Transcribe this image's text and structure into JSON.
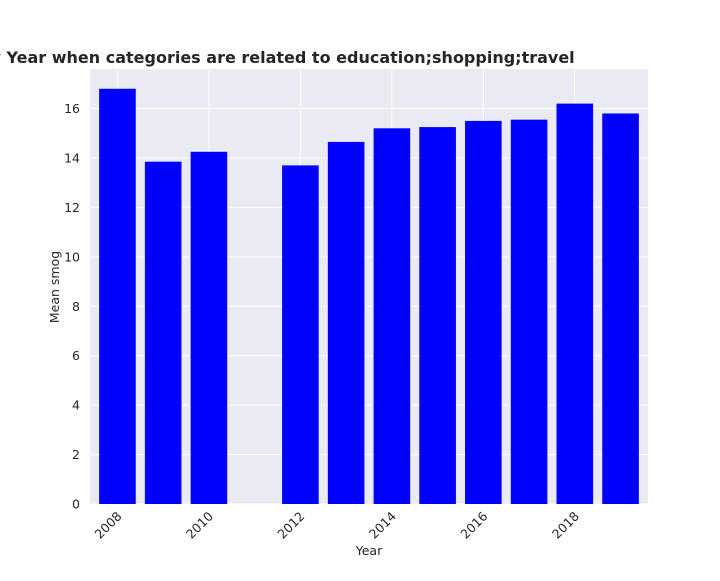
{
  "chart_data": {
    "type": "bar",
    "title": "Mean smog in privacy policies by Year when categories are related to education;shopping;travel",
    "xlabel": "Year",
    "ylabel": "Mean smog",
    "x": [
      2008,
      2009,
      2010,
      2012,
      2013,
      2014,
      2015,
      2016,
      2017,
      2018,
      2019
    ],
    "values": [
      16.8,
      13.85,
      14.25,
      13.7,
      14.65,
      15.2,
      15.25,
      15.5,
      15.55,
      16.2,
      15.8
    ],
    "xticks": [
      2008,
      2010,
      2012,
      2014,
      2016,
      2018
    ],
    "xlim": [
      2007.4,
      2019.6
    ],
    "yticks": [
      0,
      2,
      4,
      6,
      8,
      10,
      12,
      14,
      16
    ],
    "ylim": [
      0,
      17.6
    ],
    "bar_color": "#0000ff",
    "background_color": "#eaeaf2",
    "grid_color": "#ffffff",
    "grid": true
  }
}
